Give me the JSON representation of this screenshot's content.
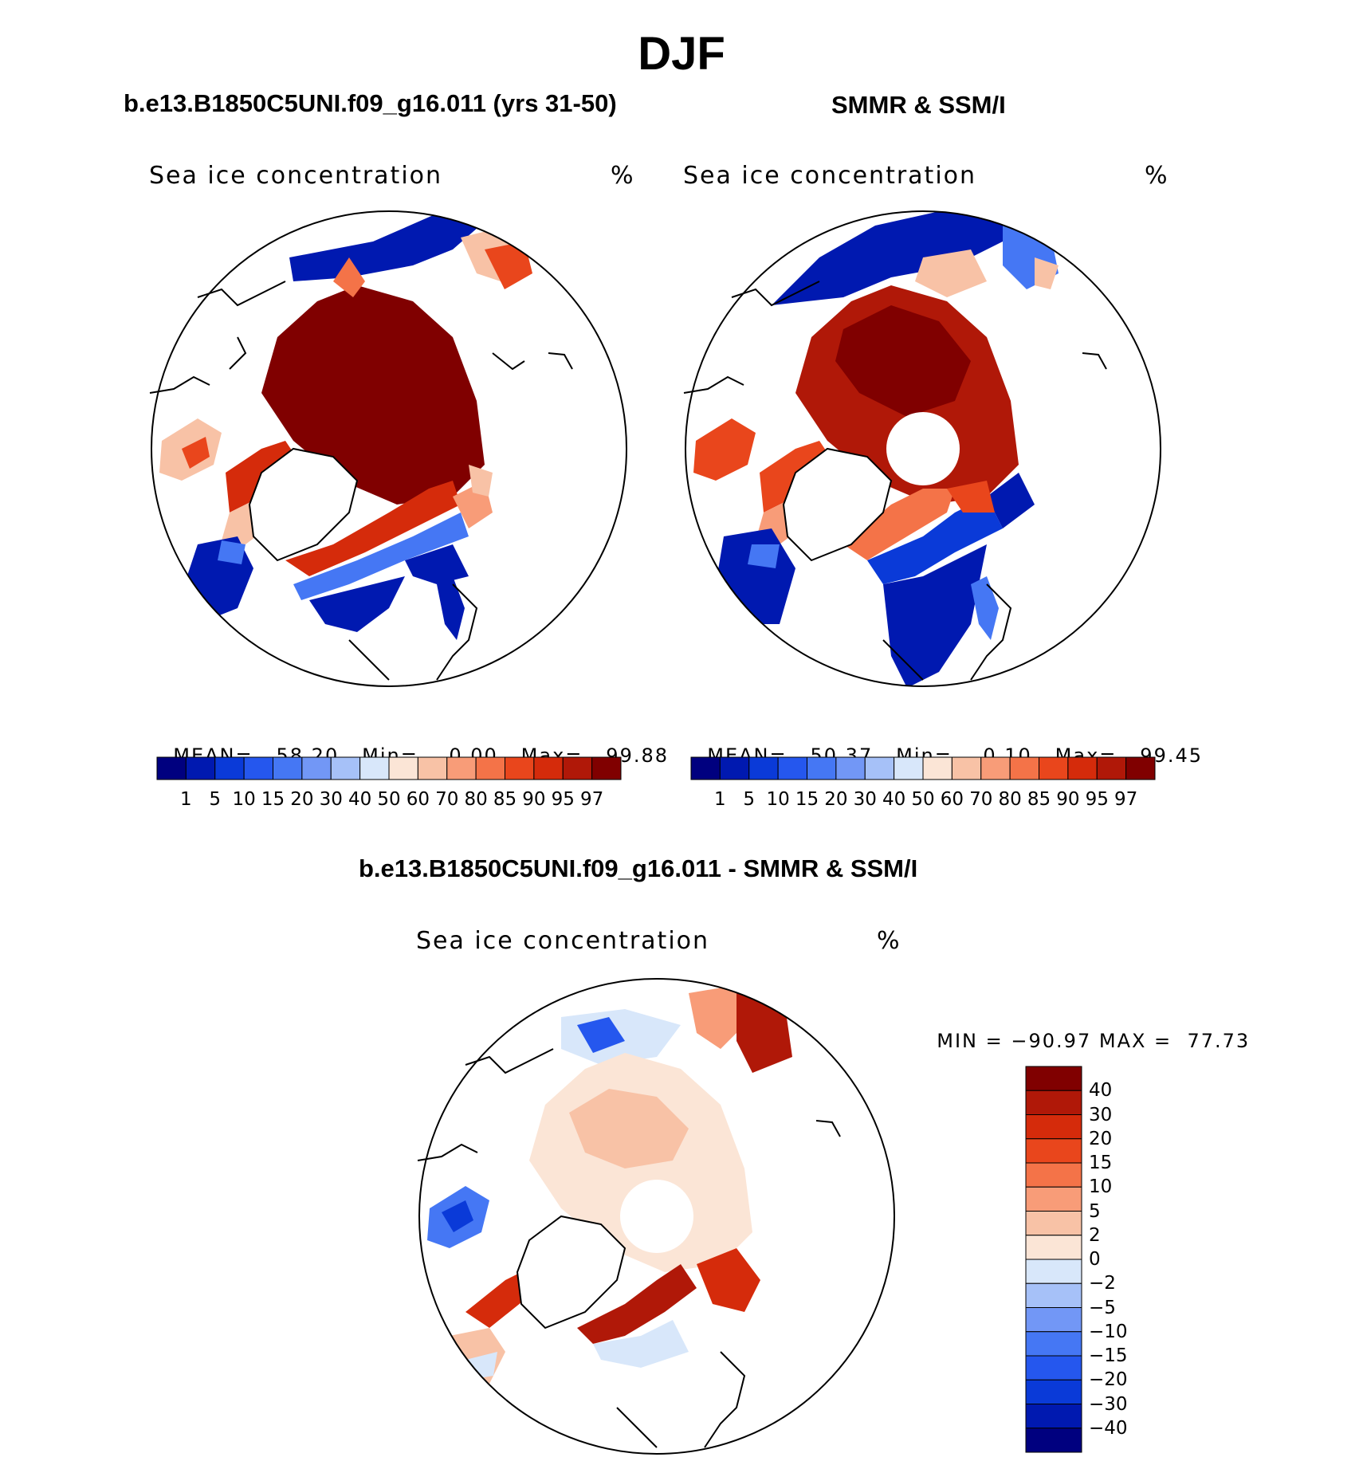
{
  "main_title": "DJF",
  "panels": [
    {
      "title": "b.e13.B1850C5UNI.f09_g16.011 (yrs 31-50)",
      "variable": "Sea ice concentration",
      "unit": "%",
      "stats": {
        "mean_label": "MEAN=",
        "mean": "58.20",
        "min_label": "Min=",
        "min": "0.00",
        "max_label": "Max=",
        "max": "99.88"
      }
    },
    {
      "title": "SMMR & SSM/I",
      "variable": "Sea ice concentration",
      "unit": "%",
      "stats": {
        "mean_label": "MEAN=",
        "mean": "50.37",
        "min_label": "Min=",
        "min": "0.10",
        "max_label": "Max=",
        "max": "99.45"
      }
    },
    {
      "title": "b.e13.B1850C5UNI.f09_g16.011 - SMMR & SSM/I",
      "variable": "Sea ice concentration",
      "unit": "%",
      "stats": {
        "min_label": "MIN =",
        "min": "−90.97",
        "max_label": "MAX =",
        "max": "77.73"
      }
    }
  ],
  "colorbar_concentration": {
    "ticks": [
      "1",
      "5",
      "10",
      "15",
      "20",
      "30",
      "40",
      "50",
      "60",
      "70",
      "80",
      "85",
      "90",
      "95",
      "97"
    ],
    "colors": [
      "#00007f",
      "#0019b0",
      "#0a3ad8",
      "#2557ee",
      "#4577f4",
      "#7297f6",
      "#a6c1f8",
      "#d8e7fa",
      "#fbe5d6",
      "#f8c2a6",
      "#f89c78",
      "#f47348",
      "#e9461c",
      "#d52b0b",
      "#b01808",
      "#800000"
    ]
  },
  "colorbar_difference": {
    "ticks": [
      "40",
      "30",
      "20",
      "15",
      "10",
      "5",
      "2",
      "0",
      "−2",
      "−5",
      "−10",
      "−15",
      "−20",
      "−30",
      "−40"
    ],
    "colors": [
      "#800000",
      "#b01808",
      "#d52b0b",
      "#e9461c",
      "#f47348",
      "#f89c78",
      "#f8c2a6",
      "#fbe5d6",
      "#d8e7fa",
      "#a6c1f8",
      "#7297f6",
      "#4577f4",
      "#2557ee",
      "#0a3ad8",
      "#0019b0",
      "#00007f"
    ]
  },
  "colors": {
    "dark_red": "#800000",
    "red": "#d52b0b",
    "salmon": "#f89c78",
    "pale": "#fbe5d6",
    "light_blue": "#d8e7fa",
    "blue": "#2557ee",
    "dark_blue": "#00007f"
  }
}
